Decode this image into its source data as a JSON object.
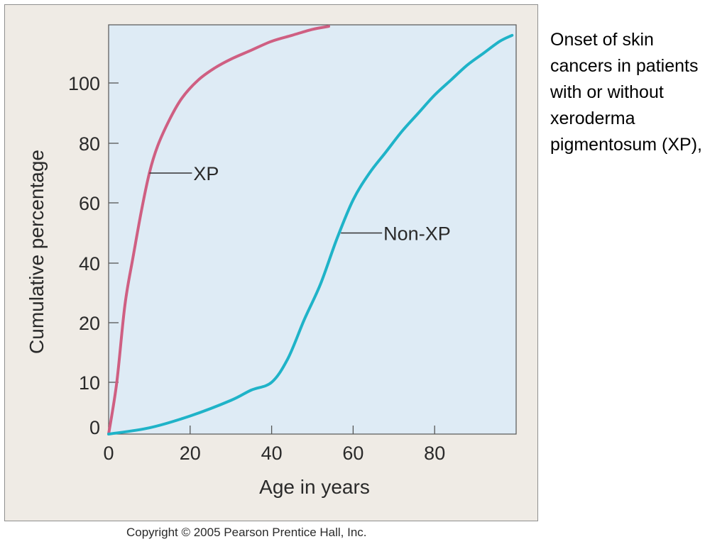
{
  "caption": "Onset of skin cancers in patients with or without xeroderma pigmentosum (XP),",
  "copyright": "Copyright © 2005 Pearson Prentice Hall, Inc.",
  "colors": {
    "panel_background": "#efebe5",
    "plot_background": "#deebf5",
    "xp": "#cf5f82",
    "non_xp": "#1fb3c8",
    "axis": "#555555"
  },
  "chart_data": {
    "type": "line",
    "title": "",
    "xlabel": "Age in years",
    "ylabel": "Cumulative percentage",
    "xlim": [
      0,
      100
    ],
    "x_ticks": [
      0,
      20,
      40,
      60,
      80
    ],
    "y_ticks": [
      0,
      10,
      20,
      40,
      60,
      80,
      100
    ],
    "y_axis_note": "non-linear y axis: 0 and 10 are compressed near the bottom",
    "grid": false,
    "legend": "none; series labelled inline with leader lines",
    "series": [
      {
        "name": "XP",
        "color": "#cf5f82",
        "label_at": [
          10,
          70
        ],
        "x": [
          0,
          2,
          4,
          6,
          8,
          10,
          12,
          15,
          18,
          22,
          26,
          30,
          35,
          40,
          45,
          50,
          54
        ],
        "y": [
          0,
          10,
          26,
          42,
          57,
          70,
          79,
          88,
          95,
          101,
          105,
          108,
          111,
          114,
          116,
          118,
          119
        ]
      },
      {
        "name": "Non-XP",
        "color": "#1fb3c8",
        "label_at": [
          57,
          50
        ],
        "x": [
          0,
          10,
          20,
          30,
          35,
          40,
          44,
          48,
          52,
          56,
          60,
          64,
          68,
          72,
          76,
          80,
          84,
          88,
          92,
          96,
          99
        ],
        "y": [
          0,
          1.2,
          3.5,
          6.5,
          8.5,
          10,
          14,
          21,
          33,
          48,
          61,
          70,
          77,
          84,
          90,
          96,
          101,
          106,
          110,
          114,
          116
        ]
      }
    ]
  }
}
